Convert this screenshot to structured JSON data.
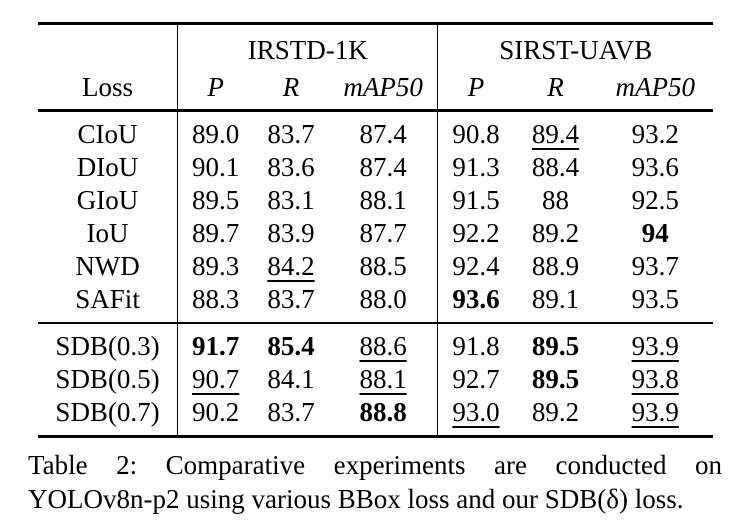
{
  "table": {
    "group_headers": [
      "IRSTD-1K",
      "SIRST-UAVB"
    ],
    "column_headers": [
      "Loss",
      "P",
      "R",
      "mAP50",
      "P",
      "R",
      "mAP50"
    ],
    "rows": [
      {
        "loss": "CIoU",
        "cells": [
          {
            "v": "89.0"
          },
          {
            "v": "83.7"
          },
          {
            "v": "87.4"
          },
          {
            "v": "90.8"
          },
          {
            "v": "89.4",
            "u": true
          },
          {
            "v": "93.2"
          }
        ]
      },
      {
        "loss": "DIoU",
        "cells": [
          {
            "v": "90.1"
          },
          {
            "v": "83.6"
          },
          {
            "v": "87.4"
          },
          {
            "v": "91.3"
          },
          {
            "v": "88.4"
          },
          {
            "v": "93.6"
          }
        ]
      },
      {
        "loss": "GIoU",
        "cells": [
          {
            "v": "89.5"
          },
          {
            "v": "83.1"
          },
          {
            "v": "88.1"
          },
          {
            "v": "91.5"
          },
          {
            "v": "88"
          },
          {
            "v": "92.5"
          }
        ]
      },
      {
        "loss": "IoU",
        "cells": [
          {
            "v": "89.7"
          },
          {
            "v": "83.9"
          },
          {
            "v": "87.7"
          },
          {
            "v": "92.2"
          },
          {
            "v": "89.2"
          },
          {
            "v": "94",
            "b": true
          }
        ]
      },
      {
        "loss": "NWD",
        "cells": [
          {
            "v": "89.3"
          },
          {
            "v": "84.2",
            "u": true
          },
          {
            "v": "88.5"
          },
          {
            "v": "92.4"
          },
          {
            "v": "88.9"
          },
          {
            "v": "93.7"
          }
        ]
      },
      {
        "loss": "SAFit",
        "cells": [
          {
            "v": "88.3"
          },
          {
            "v": "83.7"
          },
          {
            "v": "88.0"
          },
          {
            "v": "93.6",
            "b": true
          },
          {
            "v": "89.1"
          },
          {
            "v": "93.5"
          }
        ]
      },
      {
        "loss": "SDB(0.3)",
        "cells": [
          {
            "v": "91.7",
            "b": true
          },
          {
            "v": "85.4",
            "b": true
          },
          {
            "v": "88.6",
            "u": true
          },
          {
            "v": "91.8"
          },
          {
            "v": "89.5",
            "b": true
          },
          {
            "v": "93.9",
            "u": true
          }
        ]
      },
      {
        "loss": "SDB(0.5)",
        "cells": [
          {
            "v": "90.7",
            "u": true
          },
          {
            "v": "84.1"
          },
          {
            "v": "88.1",
            "u": true
          },
          {
            "v": "92.7"
          },
          {
            "v": "89.5",
            "b": true
          },
          {
            "v": "93.8",
            "u": true
          }
        ]
      },
      {
        "loss": "SDB(0.7)",
        "cells": [
          {
            "v": "90.2"
          },
          {
            "v": "83.7"
          },
          {
            "v": "88.8",
            "b": true
          },
          {
            "v": "93.0",
            "u": true
          },
          {
            "v": "89.2"
          },
          {
            "v": "93.9",
            "u": true
          }
        ]
      }
    ]
  },
  "caption": {
    "line1": "Table 2: Comparative experiments are conducted on",
    "line2": "YOLOv8n-p2 using various BBox loss and our SDB(δ) loss."
  }
}
